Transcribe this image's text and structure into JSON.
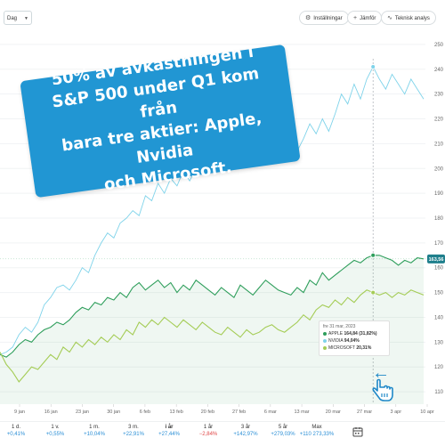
{
  "toolbar": {
    "interval": "Dag",
    "settings_label": "Inställningar",
    "compare_label": "Jämför",
    "technical_label": "Teknisk analys"
  },
  "banner": {
    "line1": "50% av avkastningen i",
    "line2": "S&P 500 under Q1 kom från",
    "line3": "bara tre aktier: Apple, Nvidia",
    "line4": "och Microsoft."
  },
  "tooltip": {
    "date": "fre 31 mar, 2023",
    "rows": [
      {
        "name": "APPLE",
        "value": "164,84 (31,82%)",
        "color": "#2e9e5b"
      },
      {
        "name": "NVIDIA",
        "value": "94,04%",
        "color": "#7fd3ea"
      },
      {
        "name": "MICROSOFT",
        "value": "20,31%",
        "color": "#a4cc55"
      }
    ]
  },
  "price_badge": "163,56",
  "periods": [
    {
      "label": "1 d.",
      "change": "+0,41%",
      "color": "#2b8fd6"
    },
    {
      "label": "1 v.",
      "change": "+0,55%",
      "color": "#2b8fd6"
    },
    {
      "label": "1 m.",
      "change": "+10,04%",
      "color": "#2b8fd6"
    },
    {
      "label": "3 m.",
      "change": "+22,91%",
      "color": "#2b8fd6"
    },
    {
      "label": "i år",
      "change": "+27,44%",
      "color": "#2b8fd6"
    },
    {
      "label": "1 år",
      "change": "−2,84%",
      "color": "#e04848"
    },
    {
      "label": "3 år",
      "change": "+142,97%",
      "color": "#2b8fd6"
    },
    {
      "label": "5 år",
      "change": "+279,03%",
      "color": "#2b8fd6"
    },
    {
      "label": "Max",
      "change": "+110 273,33%",
      "color": "#2b8fd6"
    }
  ],
  "chart_data": {
    "type": "line",
    "x_ticks": [
      "9 jan",
      "16 jan",
      "23 jan",
      "30 jan",
      "6 feb",
      "13 feb",
      "20 feb",
      "27 feb",
      "6 mar",
      "13 mar",
      "20 mar",
      "27 mar",
      "3 apr",
      "10 apr"
    ],
    "y_ticks": [
      110,
      120,
      130,
      140,
      150,
      160,
      170,
      180,
      190,
      200,
      210,
      220,
      230,
      240,
      250
    ],
    "ylim": [
      105,
      255
    ],
    "grid": true,
    "series": [
      {
        "name": "NVIDIA",
        "color": "#7fd3ea",
        "values": [
          125,
          126,
          128,
          133,
          136,
          134,
          138,
          145,
          148,
          152,
          153,
          151,
          155,
          160,
          158,
          165,
          170,
          174,
          172,
          178,
          180,
          183,
          181,
          189,
          187,
          194,
          190,
          196,
          193,
          199,
          195,
          200,
          198,
          203,
          206,
          201,
          204,
          207,
          202,
          205,
          206,
          204,
          208,
          206,
          210,
          206,
          203,
          207,
          212,
          218,
          214,
          220,
          215,
          222,
          230,
          226,
          234,
          228,
          236,
          241,
          236,
          232,
          238,
          234,
          230,
          236,
          232,
          228
        ]
      },
      {
        "name": "APPLE",
        "color": "#2e9e5b",
        "values": [
          125,
          124,
          126,
          129,
          131,
          130,
          133,
          135,
          136,
          138,
          137,
          139,
          142,
          144,
          143,
          146,
          145,
          148,
          147,
          150,
          148,
          152,
          154,
          151,
          153,
          155,
          152,
          154,
          150,
          153,
          151,
          155,
          153,
          151,
          149,
          152,
          150,
          148,
          153,
          151,
          149,
          152,
          155,
          153,
          151,
          150,
          149,
          152,
          150,
          155,
          153,
          158,
          155,
          157,
          159,
          161,
          163,
          162,
          164,
          165,
          165,
          164,
          163,
          161,
          163,
          162,
          164,
          163.56
        ]
      },
      {
        "name": "MICROSOFT",
        "color": "#a4cc55",
        "values": [
          126,
          121,
          118,
          114,
          117,
          120,
          119,
          122,
          125,
          123,
          128,
          126,
          130,
          128,
          131,
          129,
          132,
          130,
          133,
          131,
          135,
          133,
          138,
          136,
          139,
          137,
          140,
          138,
          136,
          139,
          137,
          135,
          138,
          136,
          134,
          133,
          136,
          134,
          132,
          135,
          133,
          134,
          136,
          137,
          135,
          134,
          136,
          138,
          141,
          139,
          143,
          145,
          144,
          147,
          145,
          148,
          146,
          149,
          151,
          150,
          149,
          150,
          148,
          150,
          149,
          151,
          150,
          149
        ]
      }
    ],
    "highlight_index": 59
  }
}
